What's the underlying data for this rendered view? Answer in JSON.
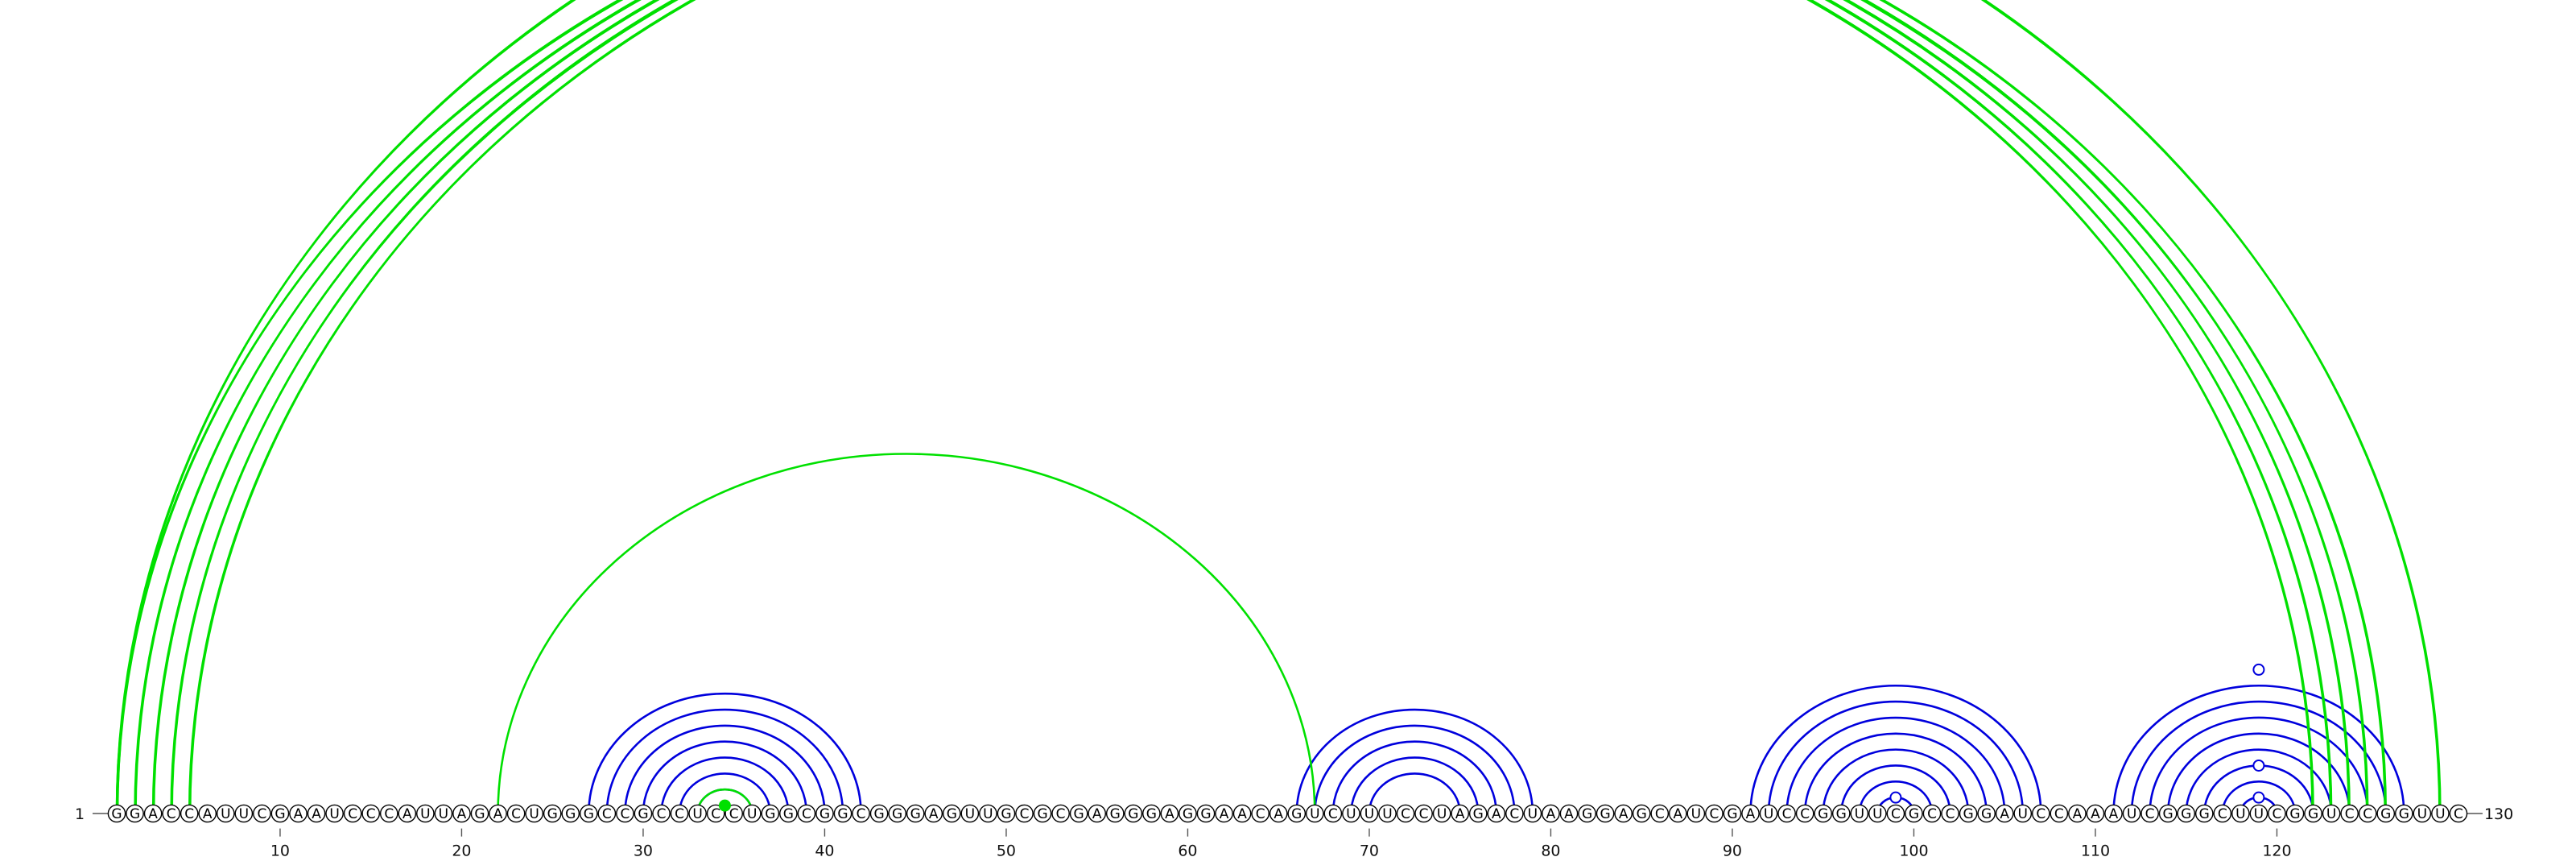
{
  "sequence": "GGACCAUUCGAAUCCCAUUAGACUGGGCCGCCUCCUGGCGGCGGGAGUUGCGCGAGGGAGGAACAGUCUUUCCUAGACUAAGGAGCAUCGAUCCGGUUCGCCGGAUCCAAAUCGGGCUUCGGUCCGGUUC",
  "start_label": "1",
  "end_label": "130",
  "axis_ticks": [
    10,
    20,
    30,
    40,
    50,
    60,
    70,
    80,
    90,
    100,
    110,
    120
  ],
  "colors": {
    "arc_pair_a": "#0000dd",
    "arc_pair_b": "#00e000",
    "nucleotide_outline": "#000000"
  },
  "arc_groups": [
    {
      "color": "#0000dd",
      "pairs": [
        [
          27,
          42
        ],
        [
          28,
          41
        ],
        [
          29,
          40
        ],
        [
          30,
          39
        ],
        [
          31,
          38
        ],
        [
          32,
          37
        ],
        [
          33,
          36
        ],
        [
          66,
          79
        ],
        [
          67,
          78
        ],
        [
          68,
          77
        ],
        [
          69,
          76
        ],
        [
          70,
          75
        ],
        [
          91,
          107
        ],
        [
          92,
          106
        ],
        [
          93,
          105
        ],
        [
          94,
          104
        ],
        [
          95,
          103
        ],
        [
          96,
          102
        ],
        [
          97,
          101
        ],
        [
          98,
          100
        ],
        [
          111,
          127
        ],
        [
          112,
          126
        ],
        [
          113,
          125
        ],
        [
          114,
          124
        ],
        [
          115,
          123
        ],
        [
          116,
          122
        ],
        [
          117,
          121
        ],
        [
          118,
          120
        ]
      ]
    },
    {
      "color": "#00e000",
      "pairs": [
        [
          1,
          122
        ],
        [
          1,
          122
        ],
        [
          2,
          123
        ],
        [
          2,
          123
        ],
        [
          3,
          124
        ],
        [
          3,
          124
        ],
        [
          4,
          125
        ],
        [
          4,
          125
        ],
        [
          5,
          126
        ],
        [
          5,
          126
        ],
        [
          1,
          129
        ],
        [
          1,
          129
        ],
        [
          22,
          67
        ],
        [
          33,
          36
        ]
      ]
    }
  ],
  "hairpin_markers": [
    {
      "position": 34.5,
      "height_factor": 0.5,
      "color": "#00e000",
      "filled": true
    },
    {
      "position": 99,
      "height_factor": 1,
      "color": "#0000dd",
      "filled": false
    },
    {
      "position": 119,
      "height_factor": 1,
      "color": "#0000dd",
      "filled": false
    },
    {
      "position": 119,
      "height_factor": 3,
      "color": "#0000dd",
      "filled": false
    },
    {
      "position": 119,
      "height_factor": 9,
      "color": "#0000dd",
      "filled": false
    },
    {
      "position": 65,
      "height_factor": 128,
      "color": "#00e000",
      "filled": false
    }
  ]
}
